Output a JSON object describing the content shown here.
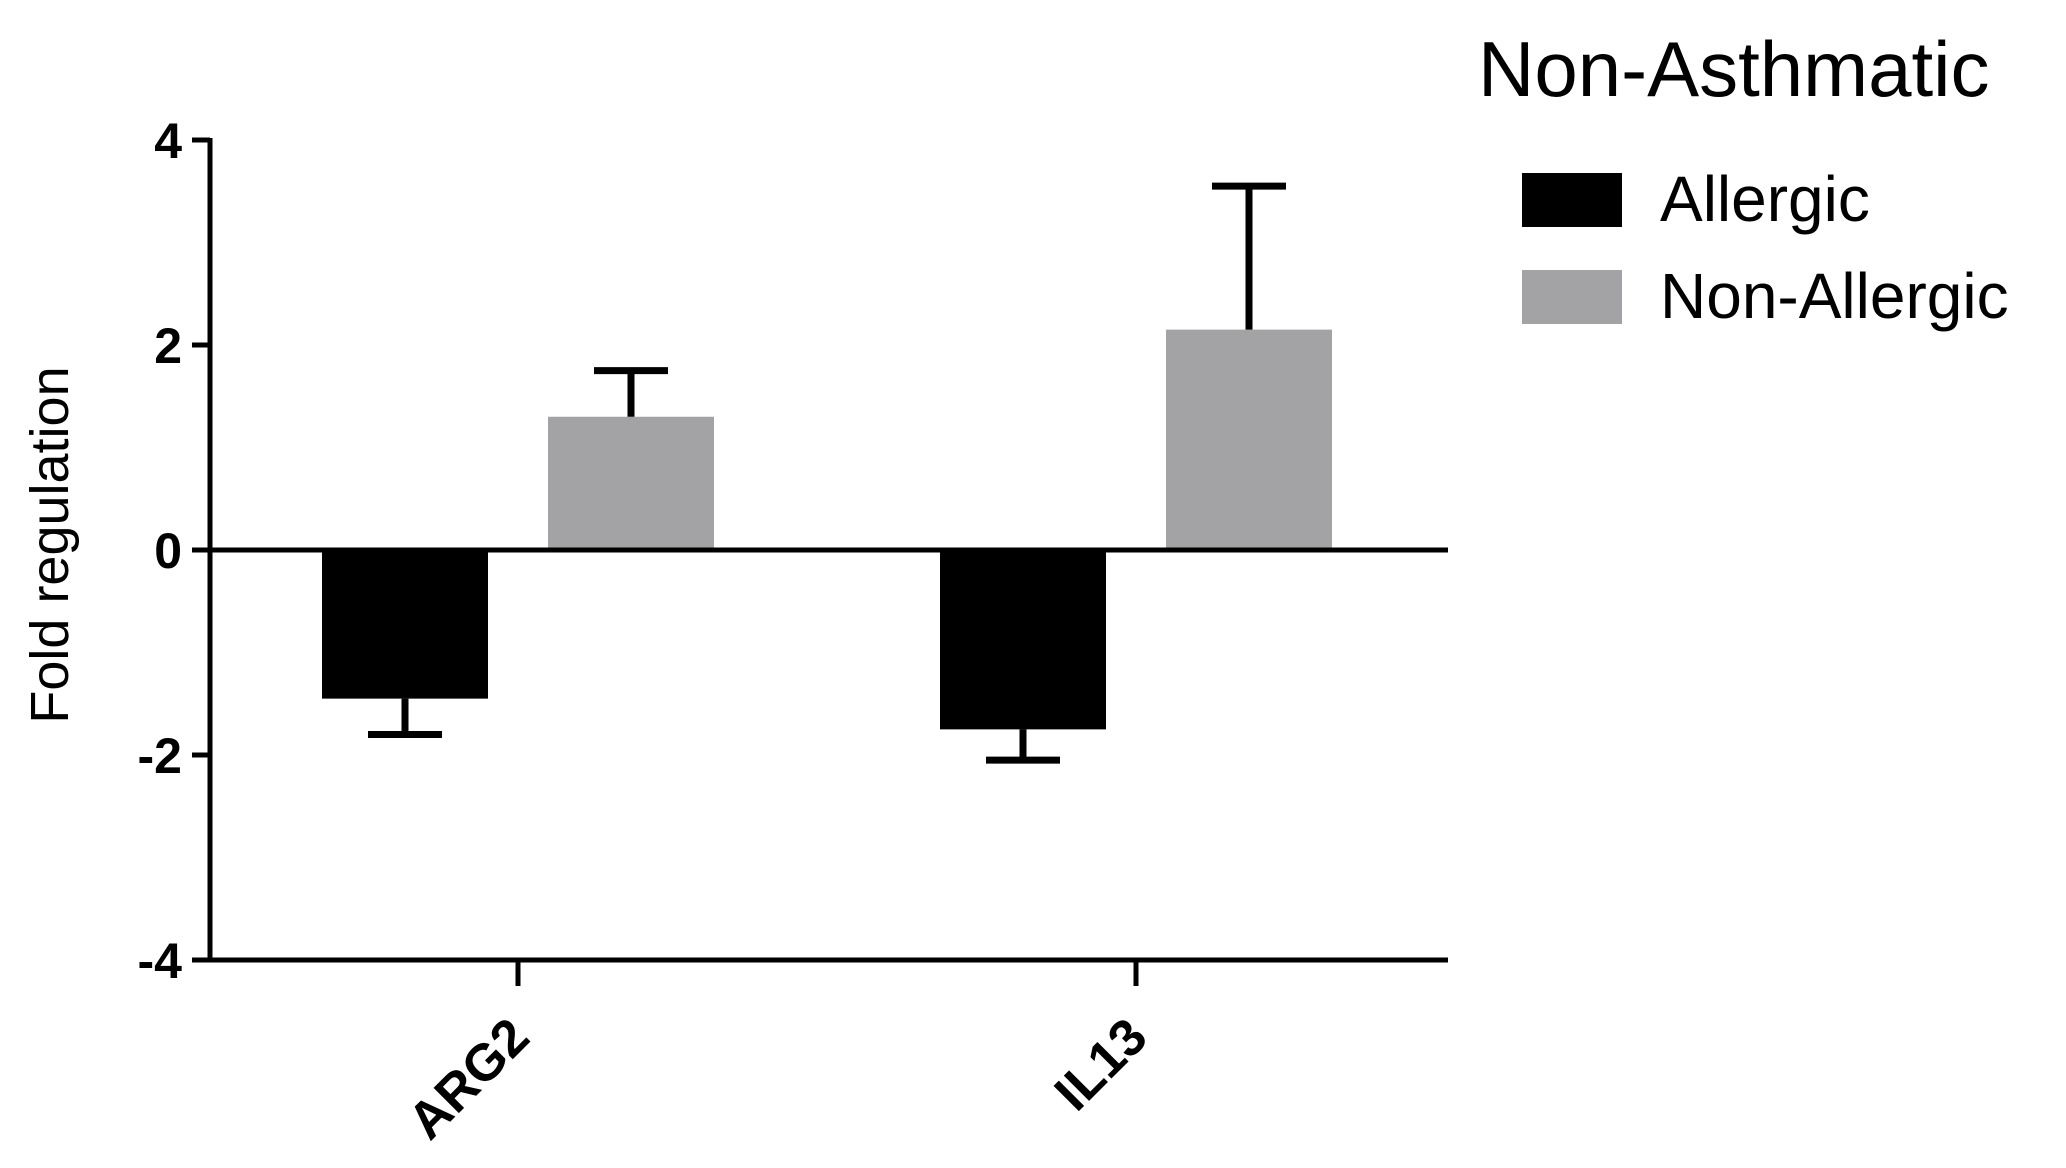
{
  "chart_data": {
    "type": "bar",
    "title": "",
    "xlabel": "",
    "ylabel": "Fold regulation",
    "ylim": [
      -4,
      4
    ],
    "yticks": [
      "4",
      "2",
      "0",
      "-2",
      "-4"
    ],
    "ytick_values": [
      4,
      2,
      0,
      -2,
      -4
    ],
    "categories": [
      "ARG2",
      "IL13"
    ],
    "legend_title": "Non-Asthmatic",
    "legend_position": "top-right",
    "series": [
      {
        "name": "Allergic",
        "color": "#000000",
        "values": [
          -1.45,
          -1.75
        ],
        "errors": [
          0.35,
          0.3
        ],
        "error_direction": "down"
      },
      {
        "name": "Non-Allergic",
        "color": "#a3a3a6",
        "values": [
          1.3,
          2.15
        ],
        "errors": [
          0.45,
          1.4
        ],
        "error_direction": "up"
      }
    ],
    "grid": false
  }
}
